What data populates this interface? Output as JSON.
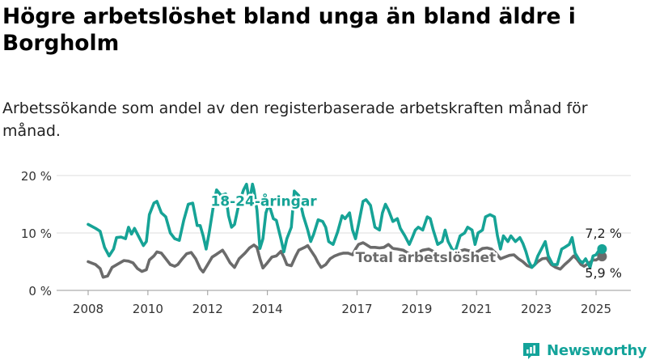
{
  "title": "Högre arbetslöshet bland unga än bland äldre i Borgholm",
  "subtitle": "Arbetssökande som andel av den registerbaserade arbetskraften månad för månad.",
  "brand": {
    "name": "Newsworthy",
    "icon": "newsworthy-logo-icon"
  },
  "colors": {
    "youth": "#16a396",
    "total": "#6b6b6b",
    "grid": "#dcdcdc",
    "axis": "#999999",
    "brand": "#13a39a"
  },
  "chart_data": {
    "type": "line",
    "ylim": [
      0,
      20
    ],
    "yticks": [
      {
        "value": 0,
        "label": "0 %"
      },
      {
        "value": 10,
        "label": "10 %"
      },
      {
        "value": 20,
        "label": "20 %"
      }
    ],
    "xlim": [
      2008,
      2025.3
    ],
    "xticks": [
      {
        "value": 2008,
        "label": "2008"
      },
      {
        "value": 2010,
        "label": "2010"
      },
      {
        "value": 2012,
        "label": "2012"
      },
      {
        "value": 2014,
        "label": "2014"
      },
      {
        "value": 2017,
        "label": "2017"
      },
      {
        "value": 2019,
        "label": "2019"
      },
      {
        "value": 2021,
        "label": "2021"
      },
      {
        "value": 2023,
        "label": "2023"
      },
      {
        "value": 2025,
        "label": "2025"
      }
    ],
    "grid": true,
    "series": [
      {
        "name": "18-24-åringar",
        "key": "youth",
        "label_at": {
          "x": 2012.1,
          "y": 14.7
        },
        "end_label": "7,2 %",
        "points": [
          [
            2008.0,
            11.5
          ],
          [
            2008.25,
            10.8
          ],
          [
            2008.4,
            10.3
          ],
          [
            2008.55,
            7.5
          ],
          [
            2008.7,
            6.0
          ],
          [
            2008.85,
            7.2
          ],
          [
            2008.95,
            9.2
          ],
          [
            2009.1,
            9.3
          ],
          [
            2009.25,
            9.0
          ],
          [
            2009.35,
            11.0
          ],
          [
            2009.45,
            9.8
          ],
          [
            2009.55,
            10.8
          ],
          [
            2009.7,
            9.3
          ],
          [
            2009.85,
            7.8
          ],
          [
            2009.95,
            8.5
          ],
          [
            2010.05,
            13.2
          ],
          [
            2010.2,
            15.2
          ],
          [
            2010.3,
            15.5
          ],
          [
            2010.45,
            13.5
          ],
          [
            2010.6,
            12.8
          ],
          [
            2010.75,
            10.0
          ],
          [
            2010.9,
            9.0
          ],
          [
            2011.05,
            8.7
          ],
          [
            2011.2,
            12.2
          ],
          [
            2011.35,
            15.0
          ],
          [
            2011.5,
            15.2
          ],
          [
            2011.65,
            11.3
          ],
          [
            2011.75,
            11.3
          ],
          [
            2011.85,
            9.5
          ],
          [
            2011.95,
            7.2
          ],
          [
            2012.05,
            10.0
          ],
          [
            2012.2,
            15.0
          ],
          [
            2012.3,
            17.5
          ],
          [
            2012.45,
            16.5
          ],
          [
            2012.6,
            16.8
          ],
          [
            2012.7,
            13.0
          ],
          [
            2012.8,
            11.0
          ],
          [
            2012.9,
            11.5
          ],
          [
            2013.05,
            15.2
          ],
          [
            2013.2,
            17.5
          ],
          [
            2013.3,
            18.5
          ],
          [
            2013.4,
            15.5
          ],
          [
            2013.5,
            18.5
          ],
          [
            2013.55,
            17.5
          ],
          [
            2013.65,
            14.0
          ],
          [
            2013.75,
            7.3
          ],
          [
            2013.85,
            9.0
          ],
          [
            2013.95,
            13.5
          ],
          [
            2014.05,
            15.0
          ],
          [
            2014.2,
            12.5
          ],
          [
            2014.3,
            12.2
          ],
          [
            2014.45,
            9.0
          ],
          [
            2014.55,
            6.7
          ],
          [
            2014.65,
            9.0
          ],
          [
            2014.8,
            11.0
          ],
          [
            2014.9,
            17.3
          ],
          [
            2015.05,
            16.5
          ],
          [
            2015.2,
            13.0
          ],
          [
            2015.35,
            10.5
          ],
          [
            2015.45,
            8.5
          ],
          [
            2015.55,
            9.8
          ],
          [
            2015.7,
            12.3
          ],
          [
            2015.85,
            12.0
          ],
          [
            2015.95,
            11.0
          ],
          [
            2016.05,
            8.5
          ],
          [
            2016.2,
            8.0
          ],
          [
            2016.35,
            10.2
          ],
          [
            2016.5,
            13.0
          ],
          [
            2016.6,
            12.5
          ],
          [
            2016.75,
            13.5
          ],
          [
            2016.85,
            10.5
          ],
          [
            2016.95,
            9.0
          ],
          [
            2017.05,
            11.5
          ],
          [
            2017.2,
            15.5
          ],
          [
            2017.3,
            15.8
          ],
          [
            2017.45,
            14.8
          ],
          [
            2017.6,
            11.0
          ],
          [
            2017.75,
            10.5
          ],
          [
            2017.85,
            13.5
          ],
          [
            2017.95,
            15.0
          ],
          [
            2018.05,
            14.0
          ],
          [
            2018.2,
            12.0
          ],
          [
            2018.35,
            12.5
          ],
          [
            2018.45,
            10.8
          ],
          [
            2018.6,
            9.5
          ],
          [
            2018.75,
            8.0
          ],
          [
            2018.85,
            9.2
          ],
          [
            2018.95,
            10.5
          ],
          [
            2019.05,
            11.0
          ],
          [
            2019.2,
            10.5
          ],
          [
            2019.35,
            12.8
          ],
          [
            2019.45,
            12.5
          ],
          [
            2019.55,
            10.5
          ],
          [
            2019.7,
            8.0
          ],
          [
            2019.85,
            8.5
          ],
          [
            2019.95,
            10.5
          ],
          [
            2020.05,
            8.5
          ],
          [
            2020.2,
            7.0
          ],
          [
            2020.3,
            7.0
          ],
          [
            2020.45,
            9.5
          ],
          [
            2020.6,
            10.0
          ],
          [
            2020.7,
            11.0
          ],
          [
            2020.85,
            10.5
          ],
          [
            2020.95,
            8.0
          ],
          [
            2021.05,
            10.0
          ],
          [
            2021.2,
            10.5
          ],
          [
            2021.3,
            12.8
          ],
          [
            2021.45,
            13.2
          ],
          [
            2021.6,
            12.8
          ],
          [
            2021.7,
            9.5
          ],
          [
            2021.8,
            7.2
          ],
          [
            2021.9,
            9.5
          ],
          [
            2022.05,
            8.5
          ],
          [
            2022.15,
            9.5
          ],
          [
            2022.3,
            8.5
          ],
          [
            2022.45,
            9.2
          ],
          [
            2022.55,
            8.2
          ],
          [
            2022.65,
            6.8
          ],
          [
            2022.75,
            5.0
          ],
          [
            2022.85,
            4.0
          ],
          [
            2022.95,
            4.5
          ],
          [
            2023.05,
            6.0
          ],
          [
            2023.2,
            7.5
          ],
          [
            2023.3,
            8.5
          ],
          [
            2023.4,
            6.0
          ],
          [
            2023.55,
            4.5
          ],
          [
            2023.7,
            4.5
          ],
          [
            2023.85,
            7.2
          ],
          [
            2023.95,
            7.5
          ],
          [
            2024.1,
            8.0
          ],
          [
            2024.2,
            9.2
          ],
          [
            2024.3,
            6.5
          ],
          [
            2024.45,
            5.2
          ],
          [
            2024.55,
            4.8
          ],
          [
            2024.65,
            5.5
          ],
          [
            2024.8,
            4.0
          ],
          [
            2024.9,
            6.0
          ],
          [
            2025.0,
            6.2
          ],
          [
            2025.1,
            7.0
          ],
          [
            2025.2,
            7.2
          ]
        ]
      },
      {
        "name": "Total arbetslöshet",
        "key": "total",
        "label_at": {
          "x": 2016.95,
          "y": 4.9
        },
        "end_label": "5,9 %",
        "points": [
          [
            2008.0,
            5.0
          ],
          [
            2008.25,
            4.5
          ],
          [
            2008.4,
            3.8
          ],
          [
            2008.5,
            2.3
          ],
          [
            2008.65,
            2.5
          ],
          [
            2008.8,
            4.0
          ],
          [
            2009.0,
            4.6
          ],
          [
            2009.2,
            5.2
          ],
          [
            2009.35,
            5.1
          ],
          [
            2009.5,
            4.8
          ],
          [
            2009.65,
            3.8
          ],
          [
            2009.8,
            3.3
          ],
          [
            2009.95,
            3.6
          ],
          [
            2010.05,
            5.3
          ],
          [
            2010.2,
            6.0
          ],
          [
            2010.3,
            6.7
          ],
          [
            2010.45,
            6.5
          ],
          [
            2010.6,
            5.5
          ],
          [
            2010.75,
            4.5
          ],
          [
            2010.9,
            4.2
          ],
          [
            2011.0,
            4.5
          ],
          [
            2011.15,
            5.5
          ],
          [
            2011.3,
            6.4
          ],
          [
            2011.45,
            6.6
          ],
          [
            2011.6,
            5.5
          ],
          [
            2011.75,
            3.8
          ],
          [
            2011.85,
            3.2
          ],
          [
            2012.0,
            4.5
          ],
          [
            2012.15,
            5.8
          ],
          [
            2012.3,
            6.3
          ],
          [
            2012.5,
            7.0
          ],
          [
            2012.6,
            6.2
          ],
          [
            2012.75,
            4.8
          ],
          [
            2012.9,
            4.0
          ],
          [
            2013.05,
            5.5
          ],
          [
            2013.25,
            6.5
          ],
          [
            2013.4,
            7.4
          ],
          [
            2013.55,
            7.9
          ],
          [
            2013.65,
            7.5
          ],
          [
            2013.75,
            5.5
          ],
          [
            2013.85,
            3.9
          ],
          [
            2014.0,
            4.8
          ],
          [
            2014.15,
            5.8
          ],
          [
            2014.3,
            6.0
          ],
          [
            2014.45,
            6.8
          ],
          [
            2014.55,
            5.8
          ],
          [
            2014.65,
            4.5
          ],
          [
            2014.8,
            4.3
          ],
          [
            2014.95,
            6.0
          ],
          [
            2015.05,
            7.0
          ],
          [
            2015.25,
            7.5
          ],
          [
            2015.35,
            7.8
          ],
          [
            2015.45,
            7.0
          ],
          [
            2015.6,
            5.8
          ],
          [
            2015.7,
            4.8
          ],
          [
            2015.8,
            4.0
          ],
          [
            2015.95,
            4.5
          ],
          [
            2016.1,
            5.5
          ],
          [
            2016.25,
            6.0
          ],
          [
            2016.4,
            6.3
          ],
          [
            2016.55,
            6.5
          ],
          [
            2016.7,
            6.5
          ],
          [
            2016.85,
            6.2
          ],
          [
            2016.95,
            7.2
          ],
          [
            2017.05,
            8.0
          ],
          [
            2017.2,
            8.3
          ],
          [
            2017.3,
            8.0
          ],
          [
            2017.45,
            7.5
          ],
          [
            2017.6,
            7.5
          ],
          [
            2017.75,
            7.4
          ],
          [
            2017.9,
            7.5
          ],
          [
            2018.05,
            8.0
          ],
          [
            2018.2,
            7.3
          ],
          [
            2018.35,
            7.2
          ],
          [
            2018.55,
            7.0
          ],
          [
            2018.7,
            6.5
          ],
          [
            2018.85,
            6.2
          ],
          [
            2019.0,
            6.5
          ],
          [
            2019.2,
            7.0
          ],
          [
            2019.4,
            7.2
          ],
          [
            2019.55,
            6.8
          ],
          [
            2019.7,
            6.0
          ],
          [
            2019.85,
            5.5
          ],
          [
            2020.0,
            5.8
          ],
          [
            2020.2,
            6.3
          ],
          [
            2020.4,
            6.8
          ],
          [
            2020.6,
            7.1
          ],
          [
            2020.75,
            6.9
          ],
          [
            2020.9,
            6.5
          ],
          [
            2021.05,
            6.8
          ],
          [
            2021.2,
            7.3
          ],
          [
            2021.35,
            7.4
          ],
          [
            2021.5,
            7.2
          ],
          [
            2021.65,
            6.5
          ],
          [
            2021.8,
            5.5
          ],
          [
            2021.95,
            5.8
          ],
          [
            2022.1,
            6.1
          ],
          [
            2022.25,
            6.2
          ],
          [
            2022.4,
            5.5
          ],
          [
            2022.55,
            5.0
          ],
          [
            2022.7,
            4.3
          ],
          [
            2022.85,
            4.0
          ],
          [
            2022.95,
            4.5
          ],
          [
            2023.05,
            5.0
          ],
          [
            2023.2,
            5.5
          ],
          [
            2023.35,
            5.6
          ],
          [
            2023.5,
            4.5
          ],
          [
            2023.65,
            4.0
          ],
          [
            2023.8,
            3.7
          ],
          [
            2023.95,
            4.5
          ],
          [
            2024.1,
            5.2
          ],
          [
            2024.25,
            6.0
          ],
          [
            2024.35,
            5.5
          ],
          [
            2024.5,
            4.5
          ],
          [
            2024.6,
            4.2
          ],
          [
            2024.75,
            4.7
          ],
          [
            2024.9,
            5.3
          ],
          [
            2025.0,
            5.3
          ],
          [
            2025.1,
            5.6
          ],
          [
            2025.2,
            5.9
          ]
        ]
      }
    ]
  }
}
